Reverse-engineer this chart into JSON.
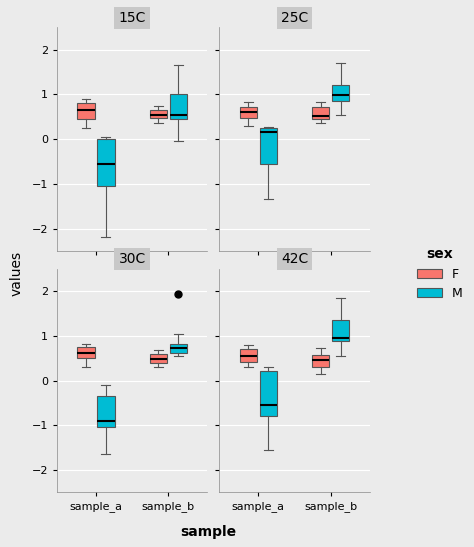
{
  "panels": [
    "15C",
    "25C",
    "30C",
    "42C"
  ],
  "samples": [
    "sample_a",
    "sample_b"
  ],
  "sex": [
    "F",
    "M"
  ],
  "colors": {
    "F": "#F8766D",
    "M": "#00BCD4"
  },
  "bg_color": "#EBEBEB",
  "panel_bg": "#E8E8E8",
  "strip_bg": "#C8C8C8",
  "ylabel": "values",
  "xlabel": "sample",
  "ylim": [
    -2.5,
    2.5
  ],
  "yticks": [
    -2,
    -1,
    0,
    1,
    2
  ],
  "legend_title": "sex",
  "boxplot_data": {
    "15C": {
      "sample_a": {
        "F": {
          "whislo": 0.25,
          "q1": 0.45,
          "med": 0.65,
          "q3": 0.8,
          "whishi": 0.9
        },
        "M": {
          "whislo": -2.2,
          "q1": -1.05,
          "med": -0.55,
          "q3": 0.0,
          "whishi": 0.05
        }
      },
      "sample_b": {
        "F": {
          "whislo": 0.35,
          "q1": 0.48,
          "med": 0.55,
          "q3": 0.65,
          "whishi": 0.75
        },
        "M": {
          "whislo": -0.05,
          "q1": 0.45,
          "med": 0.55,
          "q3": 1.0,
          "whishi": 1.65
        }
      }
    },
    "25C": {
      "sample_a": {
        "F": {
          "whislo": 0.3,
          "q1": 0.48,
          "med": 0.6,
          "q3": 0.72,
          "whishi": 0.82
        },
        "M": {
          "whislo": -1.35,
          "q1": -0.55,
          "med": 0.15,
          "q3": 0.25,
          "whishi": 0.28
        }
      },
      "sample_b": {
        "F": {
          "whislo": 0.35,
          "q1": 0.45,
          "med": 0.52,
          "q3": 0.72,
          "whishi": 0.82
        },
        "M": {
          "whislo": 0.55,
          "q1": 0.85,
          "med": 0.98,
          "q3": 1.2,
          "whishi": 1.7
        }
      }
    },
    "30C": {
      "sample_a": {
        "F": {
          "whislo": 0.3,
          "q1": 0.5,
          "med": 0.62,
          "q3": 0.75,
          "whishi": 0.82
        },
        "M": {
          "whislo": -1.65,
          "q1": -1.05,
          "med": -0.9,
          "q3": -0.35,
          "whishi": -0.1
        }
      },
      "sample_b": {
        "F": {
          "whislo": 0.3,
          "q1": 0.4,
          "med": 0.48,
          "q3": 0.6,
          "whishi": 0.68
        },
        "M": {
          "whislo": 0.55,
          "q1": 0.62,
          "med": 0.72,
          "q3": 0.82,
          "whishi": 1.05,
          "fliers": [
            1.93
          ]
        }
      }
    },
    "42C": {
      "sample_a": {
        "F": {
          "whislo": 0.3,
          "q1": 0.42,
          "med": 0.55,
          "q3": 0.7,
          "whishi": 0.8
        },
        "M": {
          "whislo": -1.55,
          "q1": -0.8,
          "med": -0.55,
          "q3": 0.22,
          "whishi": 0.3
        }
      },
      "sample_b": {
        "F": {
          "whislo": 0.15,
          "q1": 0.3,
          "med": 0.45,
          "q3": 0.58,
          "whishi": 0.72
        },
        "M": {
          "whislo": 0.55,
          "q1": 0.88,
          "med": 0.95,
          "q3": 1.35,
          "whishi": 1.85
        }
      }
    }
  }
}
